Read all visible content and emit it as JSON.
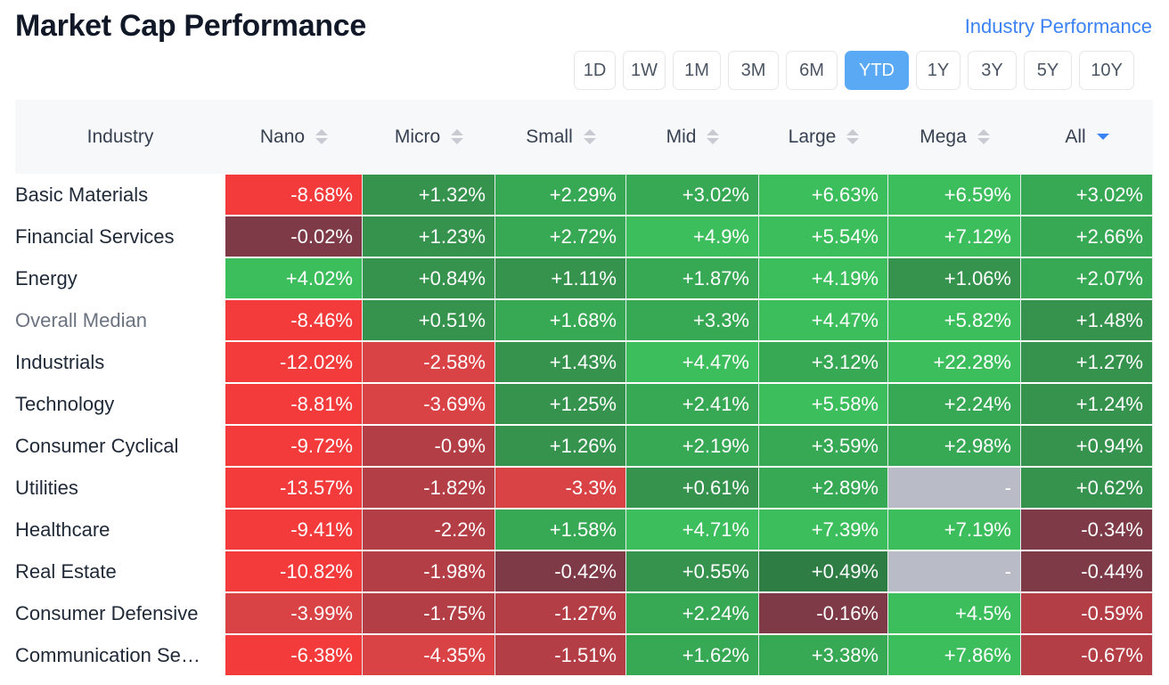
{
  "header": {
    "title": "Market Cap Performance",
    "link": "Industry Performance"
  },
  "periods": [
    {
      "label": "1D",
      "active": false
    },
    {
      "label": "1W",
      "active": false
    },
    {
      "label": "1M",
      "active": false
    },
    {
      "label": "3M",
      "active": false
    },
    {
      "label": "6M",
      "active": false
    },
    {
      "label": "YTD",
      "active": true
    },
    {
      "label": "1Y",
      "active": false
    },
    {
      "label": "3Y",
      "active": false
    },
    {
      "label": "5Y",
      "active": false
    },
    {
      "label": "10Y",
      "active": false
    }
  ],
  "table": {
    "columns": [
      {
        "label": "Industry",
        "sortable": false
      },
      {
        "label": "Nano",
        "sortable": true,
        "sorted": false
      },
      {
        "label": "Micro",
        "sortable": true,
        "sorted": false
      },
      {
        "label": "Small",
        "sortable": true,
        "sorted": false
      },
      {
        "label": "Mid",
        "sortable": true,
        "sorted": false
      },
      {
        "label": "Large",
        "sortable": true,
        "sorted": false
      },
      {
        "label": "Mega",
        "sortable": true,
        "sorted": false
      },
      {
        "label": "All",
        "sortable": true,
        "sorted": true,
        "direction": "desc"
      }
    ],
    "rows": [
      {
        "industry": "Basic Materials",
        "values": [
          "-8.68%",
          "+1.32%",
          "+2.29%",
          "+3.02%",
          "+6.63%",
          "+6.59%",
          "+3.02%"
        ]
      },
      {
        "industry": "Financial Services",
        "values": [
          "-0.02%",
          "+1.23%",
          "+2.72%",
          "+4.9%",
          "+5.54%",
          "+7.12%",
          "+2.66%"
        ]
      },
      {
        "industry": "Energy",
        "values": [
          "+4.02%",
          "+0.84%",
          "+1.11%",
          "+1.87%",
          "+4.19%",
          "+1.06%",
          "+2.07%"
        ]
      },
      {
        "industry": "Overall Median",
        "values": [
          "-8.46%",
          "+0.51%",
          "+1.68%",
          "+3.3%",
          "+4.47%",
          "+5.82%",
          "+1.48%"
        ],
        "muted": true
      },
      {
        "industry": "Industrials",
        "values": [
          "-12.02%",
          "-2.58%",
          "+1.43%",
          "+4.47%",
          "+3.12%",
          "+22.28%",
          "+1.27%"
        ]
      },
      {
        "industry": "Technology",
        "values": [
          "-8.81%",
          "-3.69%",
          "+1.25%",
          "+2.41%",
          "+5.58%",
          "+2.24%",
          "+1.24%"
        ]
      },
      {
        "industry": "Consumer Cyclical",
        "values": [
          "-9.72%",
          "-0.9%",
          "+1.26%",
          "+2.19%",
          "+3.59%",
          "+2.98%",
          "+0.94%"
        ]
      },
      {
        "industry": "Utilities",
        "values": [
          "-13.57%",
          "-1.82%",
          "-3.3%",
          "+0.61%",
          "+2.89%",
          "-",
          "+0.62%"
        ]
      },
      {
        "industry": "Healthcare",
        "values": [
          "-9.41%",
          "-2.2%",
          "+1.58%",
          "+4.71%",
          "+7.39%",
          "+7.19%",
          "-0.34%"
        ]
      },
      {
        "industry": "Real Estate",
        "values": [
          "-10.82%",
          "-1.98%",
          "-0.42%",
          "+0.55%",
          "+0.49%",
          "-",
          "-0.44%"
        ]
      },
      {
        "industry": "Consumer Defensive",
        "values": [
          "-3.99%",
          "-1.75%",
          "-1.27%",
          "+2.24%",
          "-0.16%",
          "+4.5%",
          "-0.59%"
        ]
      },
      {
        "industry": "Communication Se…",
        "values": [
          "-6.38%",
          "-4.35%",
          "-1.51%",
          "+1.62%",
          "+3.38%",
          "+7.86%",
          "-0.67%"
        ]
      }
    ]
  },
  "colors": {
    "link": "#3b82f6",
    "active_period": "#5aa9f5",
    "header_bg": "#f7f8fa",
    "neg_strong": "#f33b3b",
    "neg_mid": "#d94345",
    "neg_weak": "#b43e45",
    "neg_faint": "#7e3a47",
    "pos_faint": "#2e7d45",
    "pos_weak": "#36934d",
    "pos_mid": "#37a853",
    "pos_strong": "#3dbe5c",
    "na": "#b9bcc6"
  }
}
